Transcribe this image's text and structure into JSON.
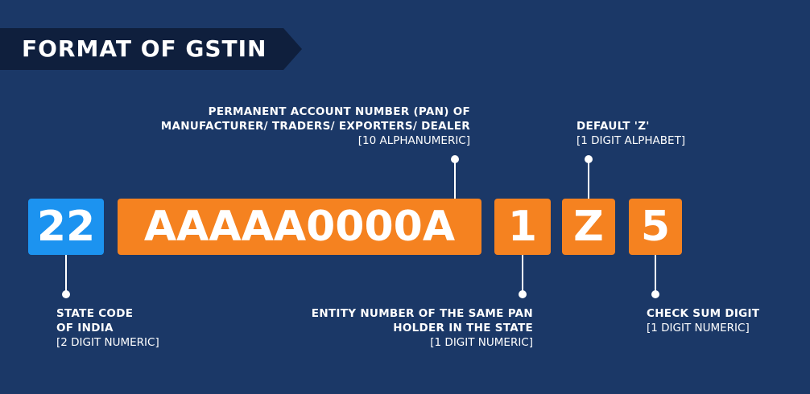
{
  "title": "FORMAT OF GSTIN",
  "segments": [
    {
      "text": "22",
      "color": "#1c93f0"
    },
    {
      "text": "AAAAA0000A",
      "color": "#f58220"
    },
    {
      "text": "1",
      "color": "#f58220"
    },
    {
      "text": "Z",
      "color": "#f58220"
    },
    {
      "text": "5",
      "color": "#f58220"
    }
  ],
  "labels": {
    "pan": {
      "line1": "PERMANENT ACCOUNT NUMBER (PAN) OF",
      "line2": "MANUFACTURER/ TRADERS/ EXPORTERS/ DEALER",
      "detail": "[10 ALPHANUMERIC]"
    },
    "default_z": {
      "line1": "DEFAULT 'Z'",
      "detail": "[1 DIGIT ALPHABET]"
    },
    "state_code": {
      "line1": "STATE CODE",
      "line2": "OF INDIA",
      "detail": "[2 DIGIT NUMERIC]"
    },
    "entity_number": {
      "line1": "ENTITY NUMBER OF THE SAME PAN",
      "line2": "HOLDER IN THE STATE",
      "detail": "[1 DIGIT NUMERIC]"
    },
    "checksum": {
      "line1": "CHECK SUM DIGIT",
      "detail": "[1 DIGIT NUMERIC]"
    }
  },
  "colors": {
    "background": "#1b3867",
    "banner": "#0f1f3d",
    "blue": "#1c93f0",
    "orange": "#f58220"
  }
}
